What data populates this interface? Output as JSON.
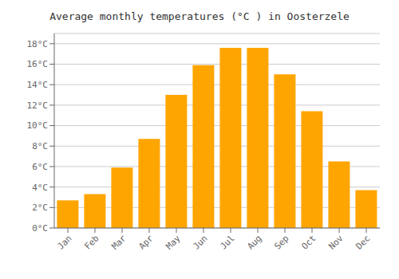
{
  "chart_data": {
    "type": "bar",
    "title": "Average monthly temperatures (°C ) in Oosterzele",
    "categories": [
      "Jan",
      "Feb",
      "Mar",
      "Apr",
      "May",
      "Jun",
      "Jul",
      "Aug",
      "Sep",
      "Oct",
      "Nov",
      "Dec"
    ],
    "values": [
      2.7,
      3.3,
      5.9,
      8.7,
      13.0,
      15.9,
      17.6,
      17.6,
      15.0,
      11.4,
      6.5,
      3.7
    ],
    "color": "#FFA500",
    "ylim": [
      0,
      19
    ],
    "yticks": [
      {
        "value": 0,
        "label": "0°C"
      },
      {
        "value": 2,
        "label": "2°C"
      },
      {
        "value": 4,
        "label": "4°C"
      },
      {
        "value": 6,
        "label": "6°C"
      },
      {
        "value": 8,
        "label": "8°C"
      },
      {
        "value": 10,
        "label": "10°C"
      },
      {
        "value": 12,
        "label": "12°C"
      },
      {
        "value": 14,
        "label": "14°C"
      },
      {
        "value": 16,
        "label": "16°C"
      },
      {
        "value": 18,
        "label": "18°C"
      }
    ],
    "grid": true
  }
}
